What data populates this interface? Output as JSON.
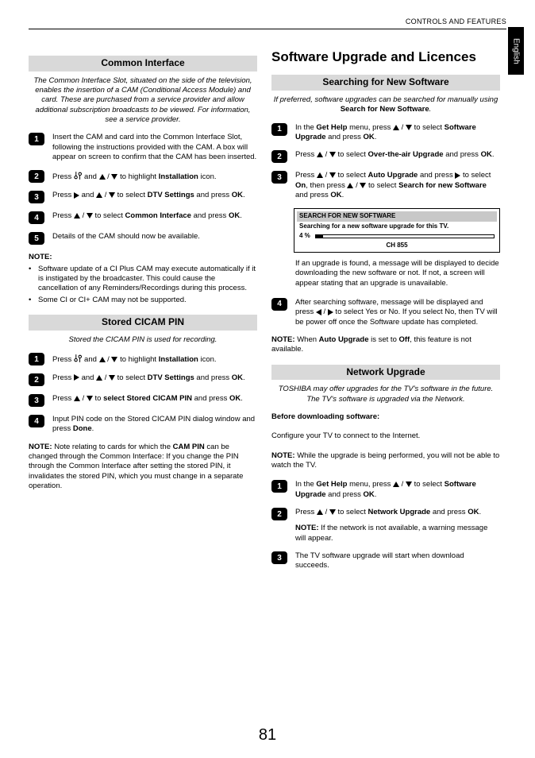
{
  "header": "CONTROLS AND FEATURES",
  "side_tab": "English",
  "page_number": "81",
  "left": {
    "sec1": {
      "title": "Common Interface",
      "intro": "The Common Interface Slot, situated on the side of the television, enables the insertion of a CAM (Conditional Access Module) and card. These are purchased from a service provider and allow additional subscription broadcasts to be viewed. For information, see a service provider.",
      "steps": {
        "s1": "Insert the CAM and card into the Common Interface Slot, following the instructions provided with the CAM. A box will appear on screen to confirm that the CAM has been inserted.",
        "s2a": "Press ",
        "s2b": " and ",
        "s2c": " to highlight ",
        "s2d": "Installation",
        "s2e": " icon.",
        "s3a": "Press ",
        "s3b": " and ",
        "s3c": " to select ",
        "s3d": "DTV Settings",
        "s3e": " and press ",
        "s3f": "OK",
        "s4a": "Press ",
        "s4b": " to select ",
        "s4c": "Common Interface",
        "s4d": " and press ",
        "s4e": "OK",
        "s5": "Details of the CAM should now be available."
      },
      "note_label": "NOTE:",
      "notes": {
        "n1": "Software update of a CI Plus CAM may execute automatically if it is instigated by the broadcaster. This could cause the cancellation of any Reminders/Recordings during this process.",
        "n2": "Some CI or CI+ CAM may not be supported."
      }
    },
    "sec2": {
      "title": "Stored CICAM PIN",
      "intro": "Stored the CICAM PIN is used for recording.",
      "steps": {
        "s1a": "Press ",
        "s1b": " and ",
        "s1c": " to highlight ",
        "s1d": "Installation",
        "s1e": " icon.",
        "s2a": "Press ",
        "s2b": " and ",
        "s2c": " to select ",
        "s2d": "DTV Settings",
        "s2e": " and press ",
        "s2f": "OK",
        "s3a": "Press ",
        "s3b": " to ",
        "s3c": "select Stored CICAM PIN",
        "s3d": " and press ",
        "s3e": "OK",
        "s4a": "Input PIN code on the Stored CICAM PIN dialog window and press ",
        "s4b": "Done"
      },
      "note_prefix": "NOTE:",
      "note_body": " Note relating to cards for which the ",
      "note_bold": "CAM PIN",
      "note_rest": " can be changed through the Common Interface: If you change the PIN through the Common Interface after setting the stored PIN, it invalidates the stored PIN, which you must change in a separate operation."
    }
  },
  "right": {
    "main_title": "Software Upgrade and Licences",
    "sec1": {
      "title": "Searching for New Software",
      "intro_a": "If preferred, software upgrades can be searched for manually using ",
      "intro_b": "Search for New Software",
      "steps": {
        "s1a": "In the ",
        "s1b": "Get Help",
        "s1c": " menu, press ",
        "s1d": " to select ",
        "s1e": "Software Upgrade",
        "s1f": " and press ",
        "s1g": "OK",
        "s2a": "Press ",
        "s2b": " to select ",
        "s2c": "Over-the-air Upgrade",
        "s2d": " and press ",
        "s2e": "OK",
        "s3a": "Press ",
        "s3b": " to select ",
        "s3c": "Auto Upgrade",
        "s3d": " and press ",
        "s3e": " to select ",
        "s3f": "On",
        "s3g": ", then press ",
        "s3h": " to select ",
        "s3i": "Search for new Software",
        "s3j": " and press ",
        "s3k": "OK"
      },
      "screen": {
        "title": "SEARCH FOR NEW SOFTWARE",
        "line": "Searching for a new software upgrade for this TV.",
        "pct_label": "4 %",
        "pct_value": 4,
        "ch": "CH   855"
      },
      "after_box": "If an upgrade is found, a message will be displayed to decide downloading the new software or not. If not, a screen will appear stating that an upgrade is unavailable.",
      "s4a": "After searching software, message will be displayed and press ",
      "s4b": " to select Yes or No. If you select No, then TV will be power off once the Software update has completed.",
      "note_prefix": "NOTE:",
      "note_a": " When ",
      "note_b": "Auto Upgrade",
      "note_c": " is set to ",
      "note_d": "Off",
      "note_e": ", this feature is not available."
    },
    "sec2": {
      "title": "Network Upgrade",
      "intro": "TOSHIBA may offer upgrades for the TV's software in the future. The TV's software is upgraded via the Network.",
      "before_label": "Before downloading software:",
      "config": "Configure your TV to connect to the Internet.",
      "note1_prefix": "NOTE:",
      "note1_body": " While the upgrade is being performed, you will not be able to watch the TV.",
      "steps": {
        "s1a": "In the ",
        "s1b": "Get Help",
        "s1c": " menu, press ",
        "s1d": " to select ",
        "s1e": "Software Upgrade",
        "s1f": " and press ",
        "s1g": "OK",
        "s2a": "Press ",
        "s2b": " to select ",
        "s2c": "Network Upgrade",
        "s2d": " and press ",
        "s2e": "OK",
        "s2note_prefix": "NOTE:",
        "s2note_body": " If the network is not available, a warning message will appear.",
        "s3": "The TV software upgrade will start when download succeeds."
      }
    }
  }
}
